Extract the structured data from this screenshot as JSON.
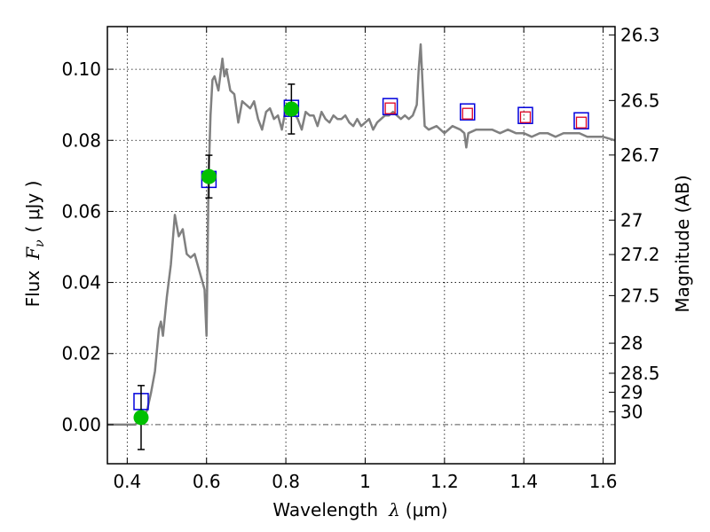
{
  "chart_data": {
    "type": "line",
    "xlabel": "Wavelength",
    "xlabel_symbol": "λ",
    "xlabel_unit": "(μm)",
    "ylabel": "Flux",
    "ylabel_symbol": "F",
    "ylabel_subscript": "ν",
    "ylabel_unit": "( μJy )",
    "y2label": "Magnitude (AB)",
    "xlim": [
      0.35,
      1.63
    ],
    "ylim": [
      -0.011,
      0.112
    ],
    "x_ticks": [
      0.4,
      0.6,
      0.8,
      1.0,
      1.2,
      1.4,
      1.6
    ],
    "x_tick_labels": [
      "0.4",
      "0.6",
      "0.8",
      "1",
      "1.2",
      "1.4",
      "1.6"
    ],
    "y_ticks": [
      0.0,
      0.02,
      0.04,
      0.06,
      0.08,
      0.1
    ],
    "y_tick_labels": [
      "0.00",
      "0.02",
      "0.04",
      "0.06",
      "0.08",
      "0.10"
    ],
    "y2_tick_labels": [
      "26.3",
      "26.5",
      "26.7",
      "27",
      "27.2",
      "27.5",
      "28",
      "28.5",
      "29",
      "30"
    ],
    "y2_tick_values": [
      26.3,
      26.5,
      26.7,
      27.0,
      27.2,
      27.5,
      28.0,
      28.5,
      29.0,
      30.0
    ],
    "grid": true,
    "colors": {
      "model": "#808080",
      "observed": "#00c000",
      "model_box": "#0000dd",
      "upper_box": "#dd0022",
      "zero_line": "#555555",
      "errorbar": "#000000"
    },
    "series": [
      {
        "role": "model-spectrum",
        "x": [
          0.35,
          0.4,
          0.42,
          0.44,
          0.45,
          0.46,
          0.47,
          0.48,
          0.485,
          0.49,
          0.5,
          0.51,
          0.52,
          0.53,
          0.54,
          0.55,
          0.56,
          0.57,
          0.58,
          0.59,
          0.595,
          0.6,
          0.605,
          0.61,
          0.615,
          0.62,
          0.63,
          0.64,
          0.645,
          0.65,
          0.66,
          0.67,
          0.68,
          0.69,
          0.7,
          0.71,
          0.72,
          0.73,
          0.74,
          0.75,
          0.76,
          0.77,
          0.78,
          0.79,
          0.8,
          0.81,
          0.82,
          0.83,
          0.84,
          0.85,
          0.86,
          0.87,
          0.88,
          0.89,
          0.9,
          0.91,
          0.92,
          0.93,
          0.94,
          0.95,
          0.96,
          0.97,
          0.98,
          0.99,
          1.0,
          1.01,
          1.02,
          1.03,
          1.04,
          1.05,
          1.06,
          1.07,
          1.08,
          1.09,
          1.1,
          1.11,
          1.12,
          1.13,
          1.135,
          1.14,
          1.145,
          1.15,
          1.16,
          1.18,
          1.2,
          1.22,
          1.24,
          1.25,
          1.255,
          1.26,
          1.28,
          1.3,
          1.32,
          1.34,
          1.36,
          1.38,
          1.4,
          1.42,
          1.44,
          1.46,
          1.48,
          1.5,
          1.52,
          1.54,
          1.56,
          1.58,
          1.6,
          1.63
        ],
        "values": [
          0.0,
          0.0,
          0.0,
          0.002,
          0.004,
          0.009,
          0.015,
          0.027,
          0.029,
          0.025,
          0.036,
          0.045,
          0.059,
          0.053,
          0.055,
          0.048,
          0.047,
          0.048,
          0.044,
          0.04,
          0.038,
          0.025,
          0.069,
          0.087,
          0.097,
          0.098,
          0.094,
          0.103,
          0.098,
          0.1,
          0.094,
          0.093,
          0.085,
          0.091,
          0.09,
          0.089,
          0.091,
          0.086,
          0.083,
          0.088,
          0.089,
          0.086,
          0.087,
          0.083,
          0.089,
          0.088,
          0.088,
          0.086,
          0.083,
          0.088,
          0.087,
          0.087,
          0.084,
          0.088,
          0.086,
          0.085,
          0.087,
          0.086,
          0.086,
          0.087,
          0.085,
          0.084,
          0.086,
          0.084,
          0.085,
          0.086,
          0.083,
          0.085,
          0.086,
          0.087,
          0.087,
          0.088,
          0.087,
          0.086,
          0.087,
          0.086,
          0.087,
          0.09,
          0.1,
          0.107,
          0.095,
          0.084,
          0.083,
          0.084,
          0.082,
          0.084,
          0.083,
          0.082,
          0.078,
          0.082,
          0.083,
          0.083,
          0.083,
          0.082,
          0.083,
          0.082,
          0.082,
          0.081,
          0.082,
          0.082,
          0.081,
          0.082,
          0.082,
          0.082,
          0.081,
          0.081,
          0.081,
          0.08
        ]
      }
    ],
    "model_boxes": [
      {
        "x": 0.435,
        "y": 0.0065
      },
      {
        "x": 0.606,
        "y": 0.069
      },
      {
        "x": 0.814,
        "y": 0.089
      },
      {
        "x": 1.063,
        "y": 0.0895
      },
      {
        "x": 1.258,
        "y": 0.088
      },
      {
        "x": 1.404,
        "y": 0.087
      },
      {
        "x": 1.545,
        "y": 0.0855
      }
    ],
    "upper_limit_boxes": [
      {
        "x": 1.063,
        "y": 0.089
      },
      {
        "x": 1.258,
        "y": 0.0875
      },
      {
        "x": 1.404,
        "y": 0.0865
      },
      {
        "x": 1.545,
        "y": 0.085
      }
    ],
    "observed_points": [
      {
        "x": 0.435,
        "y": 0.002,
        "err": 0.009
      },
      {
        "x": 0.606,
        "y": 0.0698,
        "err": 0.006
      },
      {
        "x": 0.814,
        "y": 0.0888,
        "err": 0.007
      }
    ]
  }
}
